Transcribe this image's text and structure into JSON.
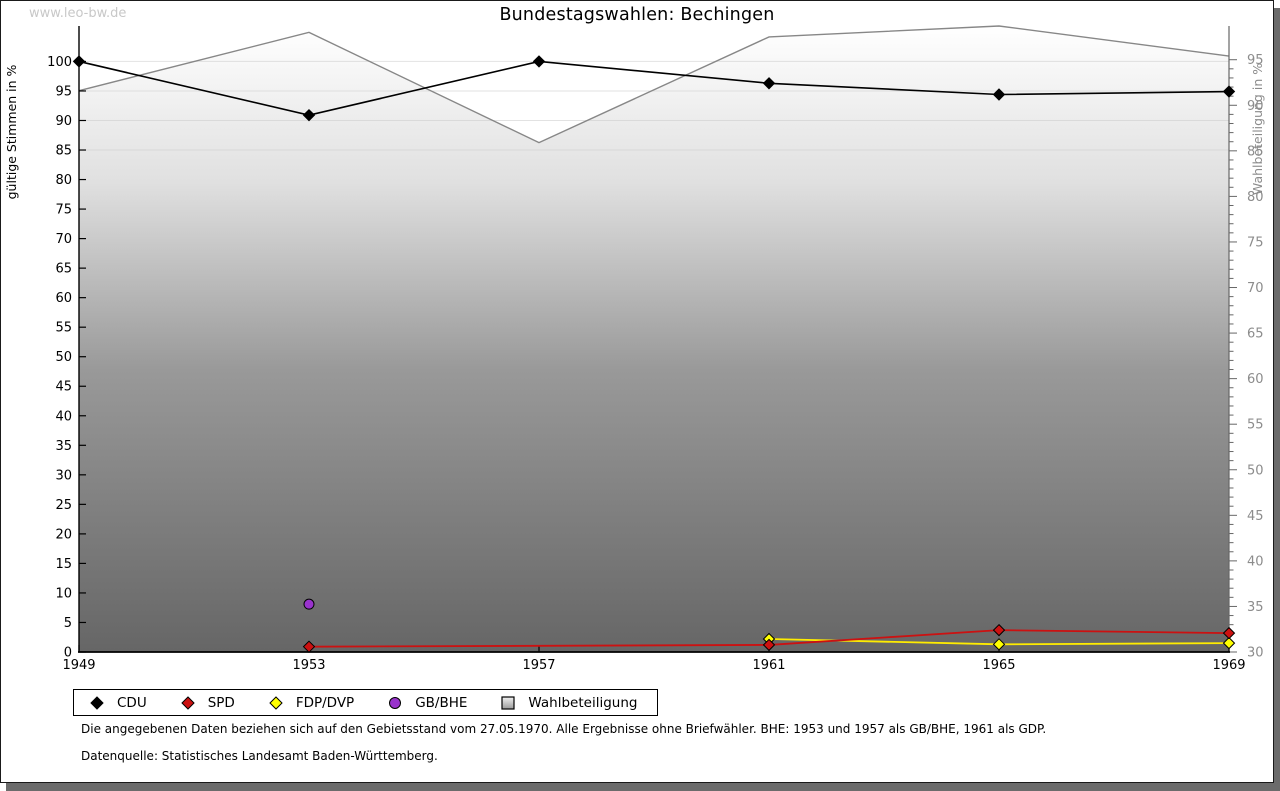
{
  "page": {
    "watermark": "www.leo-bw.de",
    "title": "Bundestagswahlen: Bechingen",
    "footnotes": [
      "Die angegebenen Daten beziehen sich auf den Gebietsstand vom 27.05.1970. Alle Ergebnisse ohne Briefwähler. BHE: 1953 und 1957 als GB/BHE, 1961 als GDP.",
      "Datenquelle: Statistisches Landesamt Baden-Württemberg."
    ]
  },
  "chart_data": {
    "type": "line",
    "title": "Bundestagswahlen: Bechingen",
    "x": [
      1949,
      1953,
      1957,
      1961,
      1965,
      1969
    ],
    "x_axis": {
      "min": 1949,
      "max": 1969
    },
    "left_axis": {
      "label": "gültige Stimmen in %",
      "min": 0,
      "max": 106,
      "ticks_from": 0,
      "ticks_to": 100,
      "step": 5
    },
    "right_axis": {
      "label": "Wahlbeteiligung in %",
      "min": 30,
      "max": 98.7,
      "ticks_from": 30,
      "ticks_to": 95,
      "step": 5,
      "minor_step": 1
    },
    "grid": {
      "color": "#cfcfcf",
      "values_left_axis": [
        85,
        90,
        95,
        100
      ]
    },
    "series": [
      {
        "name": "Wahlbeteiligung",
        "axis": "right",
        "color": "#878787",
        "line_width": 1.4,
        "marker": "none",
        "legend_marker": "square",
        "area": true,
        "values": [
          91.6,
          98.0,
          85.9,
          97.5,
          98.7,
          95.4
        ]
      },
      {
        "name": "FDP/DVP",
        "axis": "left",
        "color": "#ffec00",
        "marker_fill": "#ffff00",
        "line_width": 1.8,
        "marker": "diamond",
        "legend_marker": "diamond",
        "values": [
          null,
          null,
          null,
          2.2,
          1.3,
          1.5
        ]
      },
      {
        "name": "SPD",
        "axis": "left",
        "color": "#cc1111",
        "marker_fill": "#cc1111",
        "line_width": 1.8,
        "marker": "diamond",
        "legend_marker": "diamond",
        "values": [
          null,
          0.9,
          null,
          1.2,
          3.7,
          3.2
        ]
      },
      {
        "name": "CDU",
        "axis": "left",
        "color": "#000000",
        "marker_fill": "#000000",
        "line_width": 1.6,
        "marker": "diamond",
        "legend_marker": "diamond",
        "values": [
          100,
          90.9,
          100,
          96.3,
          94.4,
          94.9
        ]
      },
      {
        "name": "GB/BHE",
        "axis": "left",
        "color": "#9933cc",
        "marker_fill": "#9933cc",
        "line_width": 0,
        "marker": "circle",
        "legend_marker": "circle",
        "values": [
          null,
          8.1,
          null,
          null,
          null,
          null
        ]
      }
    ],
    "legend_order": [
      "CDU",
      "SPD",
      "FDP/DVP",
      "GB/BHE",
      "Wahlbeteiligung"
    ],
    "area_gradient": [
      "#ffffff",
      "#e0e0e0",
      "#999999",
      "#666666"
    ],
    "colors": {
      "axis_left": "#000000",
      "axis_right": "#666666",
      "right_text": "#8c8c8c",
      "shadow": "#6b6b6b",
      "watermark": "#c8c8c8"
    },
    "legend_position": "bottom-left"
  }
}
